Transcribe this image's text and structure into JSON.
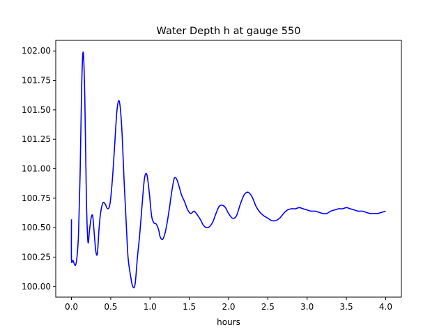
{
  "chart_data": {
    "type": "line",
    "title": "Water Depth h at gauge 550",
    "xlabel": "hours",
    "ylabel": "",
    "xlim": [
      -0.2,
      4.2
    ],
    "ylim": [
      99.91,
      102.09
    ],
    "xticks": [
      0.0,
      0.5,
      1.0,
      1.5,
      2.0,
      2.5,
      3.0,
      3.5,
      4.0
    ],
    "xtick_labels": [
      "0.0",
      "0.5",
      "1.0",
      "1.5",
      "2.0",
      "2.5",
      "3.0",
      "3.5",
      "4.0"
    ],
    "yticks": [
      100.0,
      100.25,
      100.5,
      100.75,
      101.0,
      101.25,
      101.5,
      101.75,
      102.0
    ],
    "ytick_labels": [
      "100.00",
      "100.25",
      "100.50",
      "100.75",
      "101.00",
      "101.25",
      "101.50",
      "101.75",
      "102.00"
    ],
    "grid": false,
    "series": [
      {
        "color": "#0000ff",
        "x": [
          0.0,
          0.0,
          0.02,
          0.05,
          0.07,
          0.09,
          0.11,
          0.13,
          0.15,
          0.17,
          0.19,
          0.21,
          0.23,
          0.25,
          0.27,
          0.29,
          0.31,
          0.33,
          0.35,
          0.37,
          0.4,
          0.43,
          0.46,
          0.49,
          0.52,
          0.55,
          0.58,
          0.61,
          0.64,
          0.67,
          0.7,
          0.72,
          0.75,
          0.78,
          0.81,
          0.84,
          0.87,
          0.9,
          0.93,
          0.96,
          0.99,
          1.02,
          1.05,
          1.08,
          1.11,
          1.13,
          1.16,
          1.19,
          1.22,
          1.25,
          1.28,
          1.31,
          1.34,
          1.37,
          1.4,
          1.44,
          1.48,
          1.52,
          1.56,
          1.6,
          1.64,
          1.68,
          1.72,
          1.76,
          1.8,
          1.84,
          1.88,
          1.92,
          1.96,
          2.0,
          2.05,
          2.1,
          2.15,
          2.2,
          2.25,
          2.3,
          2.35,
          2.4,
          2.45,
          2.5,
          2.55,
          2.6,
          2.65,
          2.7,
          2.75,
          2.8,
          2.85,
          2.9,
          2.95,
          3.0,
          3.05,
          3.1,
          3.15,
          3.2,
          3.25,
          3.3,
          3.35,
          3.4,
          3.45,
          3.5,
          3.55,
          3.6,
          3.65,
          3.7,
          3.75,
          3.8,
          3.85,
          3.9,
          3.95,
          4.0
        ],
        "y": [
          100.57,
          100.23,
          100.22,
          100.18,
          100.25,
          100.45,
          100.95,
          101.7,
          101.99,
          101.6,
          100.75,
          100.38,
          100.48,
          100.58,
          100.6,
          100.45,
          100.3,
          100.28,
          100.48,
          100.62,
          100.71,
          100.7,
          100.66,
          100.7,
          100.9,
          101.2,
          101.5,
          101.57,
          101.35,
          100.9,
          100.5,
          100.25,
          100.1,
          100.0,
          100.02,
          100.25,
          100.45,
          100.7,
          100.92,
          100.95,
          100.8,
          100.6,
          100.54,
          100.53,
          100.48,
          100.42,
          100.4,
          100.45,
          100.55,
          100.68,
          100.82,
          100.92,
          100.91,
          100.85,
          100.78,
          100.72,
          100.65,
          100.62,
          100.64,
          100.61,
          100.57,
          100.52,
          100.5,
          100.51,
          100.55,
          100.62,
          100.68,
          100.69,
          100.67,
          100.62,
          100.58,
          100.6,
          100.7,
          100.78,
          100.8,
          100.76,
          100.68,
          100.63,
          100.6,
          100.58,
          100.56,
          100.56,
          100.58,
          100.62,
          100.65,
          100.66,
          100.66,
          100.67,
          100.66,
          100.65,
          100.64,
          100.64,
          100.63,
          100.62,
          100.62,
          100.64,
          100.65,
          100.66,
          100.66,
          100.67,
          100.66,
          100.65,
          100.64,
          100.64,
          100.63,
          100.62,
          100.62,
          100.62,
          100.63,
          100.64
        ]
      }
    ]
  }
}
